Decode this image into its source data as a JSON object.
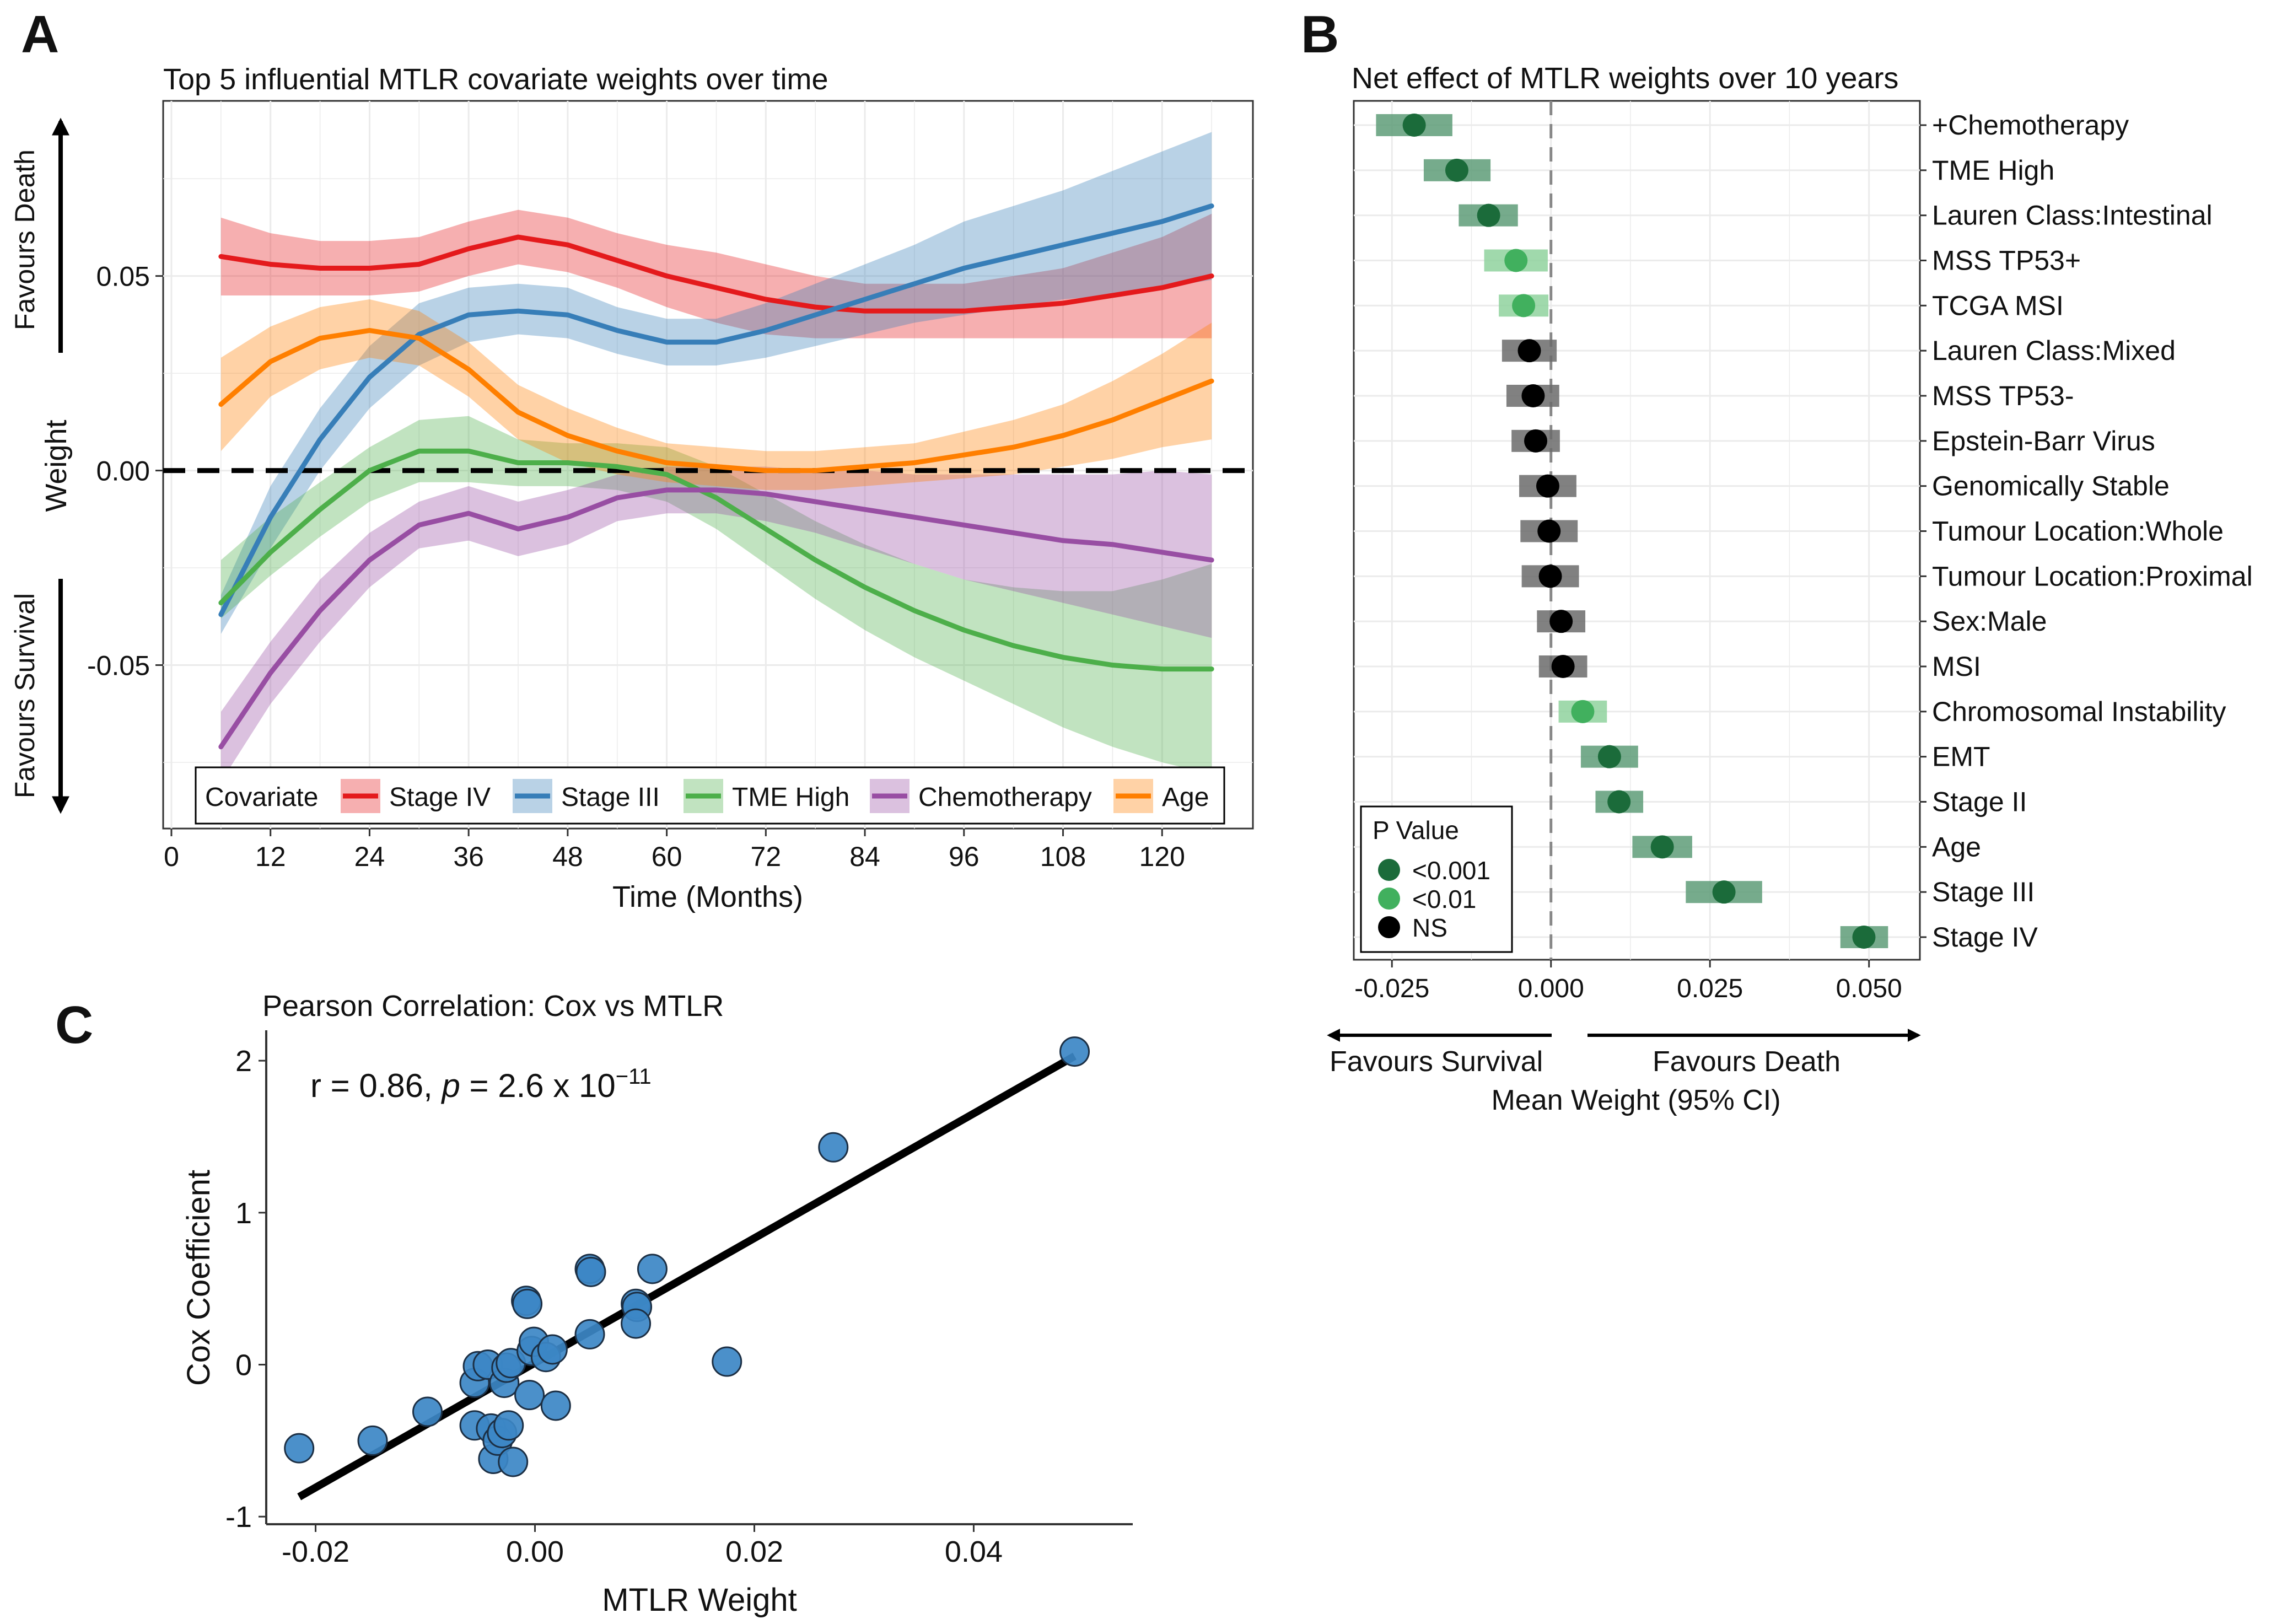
{
  "panels": {
    "a": {
      "letter": "A",
      "title": "Top 5 influential MTLR covariate weights over time",
      "favours_death": "Favours Death",
      "favours_survival": "Favours Survival",
      "weight_label": "Weight"
    },
    "b": {
      "letter": "B",
      "title": "Net effect of MTLR weights over 10 years",
      "favours_survival": "Favours Survival",
      "favours_death": "Favours Death"
    },
    "c": {
      "letter": "C",
      "title": "Pearson Correlation: Cox vs MTLR",
      "annotation": {
        "r_text": "r = 0.86, ",
        "p_symbol": "p",
        "p_text": " = 2.6 x 10",
        "p_exponent": "−11"
      }
    }
  },
  "chart_data": [
    {
      "type": "line",
      "title": "Top 5 influential MTLR covariate weights over time",
      "xlabel": "Time (Months)",
      "ylabel": "Weight",
      "xlim": [
        -1,
        131
      ],
      "ylim": [
        -0.092,
        0.095
      ],
      "x_ticks": [
        0,
        12,
        24,
        36,
        48,
        60,
        72,
        84,
        96,
        108,
        120
      ],
      "y_ticks": [
        -0.05,
        0.0,
        0.05
      ],
      "y_tick_labels": [
        "-0.05",
        "0.00",
        "0.05"
      ],
      "reference_line_y": 0,
      "grid": true,
      "legend_title": "Covariate",
      "legend_position": "bottom-inside",
      "x": [
        6,
        12,
        18,
        24,
        30,
        36,
        42,
        48,
        54,
        60,
        66,
        72,
        78,
        84,
        90,
        96,
        102,
        108,
        114,
        120,
        126
      ],
      "series": [
        {
          "name": "Stage IV",
          "color": "#E41A1C",
          "values": [
            0.055,
            0.053,
            0.052,
            0.052,
            0.053,
            0.057,
            0.06,
            0.058,
            0.054,
            0.05,
            0.047,
            0.044,
            0.042,
            0.041,
            0.041,
            0.041,
            0.042,
            0.043,
            0.045,
            0.047,
            0.05
          ],
          "lower": [
            0.045,
            0.045,
            0.045,
            0.045,
            0.046,
            0.05,
            0.053,
            0.051,
            0.047,
            0.042,
            0.038,
            0.035,
            0.034,
            0.034,
            0.034,
            0.034,
            0.034,
            0.034,
            0.034,
            0.034,
            0.034
          ],
          "upper": [
            0.065,
            0.061,
            0.059,
            0.059,
            0.06,
            0.064,
            0.067,
            0.065,
            0.061,
            0.058,
            0.056,
            0.053,
            0.05,
            0.048,
            0.048,
            0.048,
            0.05,
            0.052,
            0.056,
            0.06,
            0.066
          ]
        },
        {
          "name": "Stage III",
          "color": "#377EB8",
          "values": [
            -0.037,
            -0.012,
            0.008,
            0.024,
            0.035,
            0.04,
            0.041,
            0.04,
            0.036,
            0.033,
            0.033,
            0.036,
            0.04,
            0.044,
            0.048,
            0.052,
            0.055,
            0.058,
            0.061,
            0.064,
            0.068
          ],
          "lower": [
            -0.042,
            -0.02,
            0.0,
            0.016,
            0.027,
            0.033,
            0.035,
            0.034,
            0.03,
            0.027,
            0.027,
            0.029,
            0.032,
            0.035,
            0.038,
            0.04,
            0.042,
            0.044,
            0.045,
            0.047,
            0.049
          ],
          "upper": [
            -0.032,
            -0.004,
            0.016,
            0.032,
            0.043,
            0.047,
            0.048,
            0.047,
            0.042,
            0.039,
            0.039,
            0.043,
            0.048,
            0.053,
            0.058,
            0.064,
            0.068,
            0.072,
            0.077,
            0.082,
            0.087
          ]
        },
        {
          "name": "TME High",
          "color": "#4DAF4A",
          "values": [
            -0.034,
            -0.021,
            -0.01,
            0.0,
            0.005,
            0.005,
            0.002,
            0.002,
            0.001,
            -0.001,
            -0.007,
            -0.015,
            -0.023,
            -0.03,
            -0.036,
            -0.041,
            -0.045,
            -0.048,
            -0.05,
            -0.051,
            -0.051
          ],
          "lower": [
            -0.038,
            -0.027,
            -0.017,
            -0.008,
            -0.003,
            -0.003,
            -0.004,
            -0.004,
            -0.005,
            -0.008,
            -0.015,
            -0.024,
            -0.033,
            -0.041,
            -0.048,
            -0.054,
            -0.06,
            -0.066,
            -0.071,
            -0.075,
            -0.078
          ],
          "upper": [
            -0.023,
            -0.012,
            -0.003,
            0.006,
            0.013,
            0.014,
            0.008,
            0.007,
            0.007,
            0.006,
            0.001,
            -0.006,
            -0.013,
            -0.019,
            -0.024,
            -0.028,
            -0.03,
            -0.031,
            -0.031,
            -0.028,
            -0.024
          ]
        },
        {
          "name": "Chemotherapy",
          "color": "#984EA3",
          "values": [
            -0.071,
            -0.052,
            -0.036,
            -0.023,
            -0.014,
            -0.011,
            -0.015,
            -0.012,
            -0.007,
            -0.005,
            -0.005,
            -0.006,
            -0.008,
            -0.01,
            -0.012,
            -0.014,
            -0.016,
            -0.018,
            -0.019,
            -0.021,
            -0.023
          ],
          "lower": [
            -0.08,
            -0.06,
            -0.044,
            -0.03,
            -0.02,
            -0.018,
            -0.022,
            -0.019,
            -0.013,
            -0.011,
            -0.011,
            -0.013,
            -0.016,
            -0.02,
            -0.024,
            -0.028,
            -0.031,
            -0.034,
            -0.037,
            -0.04,
            -0.043
          ],
          "upper": [
            -0.062,
            -0.044,
            -0.028,
            -0.016,
            -0.008,
            -0.004,
            -0.008,
            -0.005,
            -0.001,
            0.001,
            0.001,
            0.001,
            0.0,
            0.0,
            -0.001,
            -0.001,
            -0.001,
            -0.001,
            -0.001,
            0.0,
            -0.001
          ]
        },
        {
          "name": "Age",
          "color": "#FF7F00",
          "values": [
            0.017,
            0.028,
            0.034,
            0.036,
            0.034,
            0.026,
            0.015,
            0.009,
            0.005,
            0.002,
            0.001,
            0.0,
            0.0,
            0.001,
            0.002,
            0.004,
            0.006,
            0.009,
            0.013,
            0.018,
            0.023
          ],
          "lower": [
            0.005,
            0.019,
            0.026,
            0.029,
            0.027,
            0.019,
            0.008,
            0.002,
            -0.001,
            -0.003,
            -0.004,
            -0.005,
            -0.005,
            -0.004,
            -0.003,
            -0.002,
            -0.001,
            0.001,
            0.003,
            0.006,
            0.008
          ],
          "upper": [
            0.029,
            0.037,
            0.042,
            0.044,
            0.041,
            0.033,
            0.022,
            0.016,
            0.011,
            0.007,
            0.006,
            0.005,
            0.005,
            0.006,
            0.007,
            0.01,
            0.013,
            0.017,
            0.023,
            0.03,
            0.038
          ]
        }
      ]
    },
    {
      "type": "scatter",
      "subtype": "forest",
      "title": "Net effect of MTLR weights over 10 years",
      "xlabel": "Mean Weight (95% CI)",
      "xlim": [
        -0.031,
        0.058
      ],
      "x_ticks": [
        -0.025,
        0.0,
        0.025,
        0.05
      ],
      "x_tick_labels": [
        "-0.025",
        "0.000",
        "0.025",
        "0.050"
      ],
      "reference_line_x": 0,
      "grid": true,
      "legend_title": "P Value",
      "legend_position": "bottom-left",
      "p_levels": [
        {
          "label": "<0.001",
          "color": "#1B6B3A",
          "ci_color": "#5E9C78"
        },
        {
          "label": "<0.01",
          "color": "#41B05E",
          "ci_color": "#8FD29E"
        },
        {
          "label": "NS",
          "color": "#000000",
          "ci_color": "#6B6B6B"
        }
      ],
      "rows": [
        {
          "label": "+Chemotherapy",
          "mean": -0.0215,
          "lo": -0.0275,
          "hi": -0.0155,
          "p": "<0.001"
        },
        {
          "label": "TME High",
          "mean": -0.0148,
          "lo": -0.02,
          "hi": -0.0095,
          "p": "<0.001"
        },
        {
          "label": "Lauren Class:Intestinal",
          "mean": -0.0098,
          "lo": -0.0145,
          "hi": -0.0052,
          "p": "<0.001"
        },
        {
          "label": "MSS TP53+",
          "mean": -0.0055,
          "lo": -0.0105,
          "hi": -0.0005,
          "p": "<0.01"
        },
        {
          "label": "TCGA MSI",
          "mean": -0.0043,
          "lo": -0.0082,
          "hi": -0.0004,
          "p": "<0.01"
        },
        {
          "label": "Lauren Class:Mixed",
          "mean": -0.0034,
          "lo": -0.0077,
          "hi": 0.0009,
          "p": "NS"
        },
        {
          "label": "MSS TP53-",
          "mean": -0.0028,
          "lo": -0.007,
          "hi": 0.0013,
          "p": "NS"
        },
        {
          "label": "Epstein-Barr Virus",
          "mean": -0.0024,
          "lo": -0.0062,
          "hi": 0.0014,
          "p": "NS"
        },
        {
          "label": "Genomically Stable",
          "mean": -0.0005,
          "lo": -0.005,
          "hi": 0.004,
          "p": "NS"
        },
        {
          "label": "Tumour Location:Whole",
          "mean": -0.0003,
          "lo": -0.0048,
          "hi": 0.0042,
          "p": "NS"
        },
        {
          "label": "Tumour Location:Proximal",
          "mean": -0.0001,
          "lo": -0.0046,
          "hi": 0.0044,
          "p": "NS"
        },
        {
          "label": "Sex:Male",
          "mean": 0.0016,
          "lo": -0.0022,
          "hi": 0.0054,
          "p": "NS"
        },
        {
          "label": "MSI",
          "mean": 0.0019,
          "lo": -0.0019,
          "hi": 0.0057,
          "p": "NS"
        },
        {
          "label": "Chromosomal Instability",
          "mean": 0.005,
          "lo": 0.0012,
          "hi": 0.0088,
          "p": "<0.01"
        },
        {
          "label": "EMT",
          "mean": 0.0092,
          "lo": 0.0047,
          "hi": 0.0137,
          "p": "<0.001"
        },
        {
          "label": "Stage II",
          "mean": 0.0107,
          "lo": 0.007,
          "hi": 0.0145,
          "p": "<0.001"
        },
        {
          "label": "Age",
          "mean": 0.0175,
          "lo": 0.0128,
          "hi": 0.0222,
          "p": "<0.001"
        },
        {
          "label": "Stage III",
          "mean": 0.0272,
          "lo": 0.0212,
          "hi": 0.0332,
          "p": "<0.001"
        },
        {
          "label": "Stage IV",
          "mean": 0.0492,
          "lo": 0.0455,
          "hi": 0.053,
          "p": "<0.001"
        }
      ]
    },
    {
      "type": "scatter",
      "title": "Pearson Correlation: Cox vs MTLR",
      "xlabel": "MTLR Weight",
      "ylabel": "Cox Coefficient",
      "xlim": [
        -0.0245,
        0.0545
      ],
      "ylim": [
        -1.05,
        2.2
      ],
      "x_ticks": [
        -0.02,
        0.0,
        0.02,
        0.04
      ],
      "x_tick_labels": [
        "-0.02",
        "0.00",
        "0.02",
        "0.04"
      ],
      "y_ticks": [
        -1,
        0,
        1,
        2
      ],
      "y_tick_labels": [
        "-1",
        "0",
        "1",
        "2"
      ],
      "grid": false,
      "point_color": "#3C87C6",
      "fit_line": {
        "x": [
          -0.0215,
          0.0492
        ],
        "y": [
          -0.87,
          2.03
        ]
      },
      "points": [
        {
          "x": -0.0215,
          "y": -0.55
        },
        {
          "x": -0.0148,
          "y": -0.5
        },
        {
          "x": -0.0098,
          "y": -0.31
        },
        {
          "x": -0.0055,
          "y": -0.4
        },
        {
          "x": -0.0055,
          "y": -0.12
        },
        {
          "x": -0.0052,
          "y": -0.01
        },
        {
          "x": -0.0043,
          "y": 0.0
        },
        {
          "x": -0.004,
          "y": -0.42
        },
        {
          "x": -0.0038,
          "y": -0.62
        },
        {
          "x": -0.0034,
          "y": -0.5
        },
        {
          "x": -0.003,
          "y": -0.45
        },
        {
          "x": -0.0028,
          "y": -0.12
        },
        {
          "x": -0.0026,
          "y": -0.02
        },
        {
          "x": -0.0024,
          "y": -0.4
        },
        {
          "x": -0.0022,
          "y": 0.01
        },
        {
          "x": -0.002,
          "y": -0.64
        },
        {
          "x": -0.0008,
          "y": 0.42
        },
        {
          "x": -0.0007,
          "y": 0.4
        },
        {
          "x": -0.0005,
          "y": -0.2
        },
        {
          "x": -0.0003,
          "y": 0.09
        },
        {
          "x": -0.0001,
          "y": 0.15
        },
        {
          "x": 0.001,
          "y": 0.05
        },
        {
          "x": 0.0016,
          "y": 0.1
        },
        {
          "x": 0.0019,
          "y": -0.27
        },
        {
          "x": 0.005,
          "y": 0.63
        },
        {
          "x": 0.0051,
          "y": 0.61
        },
        {
          "x": 0.005,
          "y": 0.2
        },
        {
          "x": 0.0092,
          "y": 0.4
        },
        {
          "x": 0.0093,
          "y": 0.38
        },
        {
          "x": 0.0092,
          "y": 0.27
        },
        {
          "x": 0.0107,
          "y": 0.63
        },
        {
          "x": 0.0175,
          "y": 0.02
        },
        {
          "x": 0.0272,
          "y": 1.43
        },
        {
          "x": 0.0492,
          "y": 2.06
        }
      ]
    }
  ]
}
